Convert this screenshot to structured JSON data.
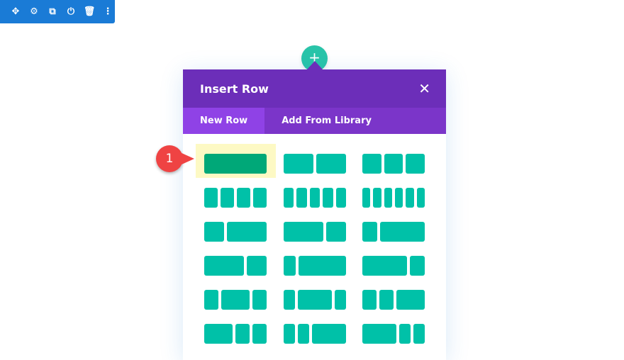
{
  "toolbar": {
    "icons": [
      "move-icon",
      "gear-icon",
      "duplicate-icon",
      "power-icon",
      "trash-icon",
      "more-icon"
    ],
    "glyphs": [
      "✥",
      "⚙",
      "⧉",
      "⏻",
      "🗑",
      "⋮"
    ],
    "color": "#1a7bd6"
  },
  "add_button": {
    "label": "+",
    "color": "#29c4a9"
  },
  "modal": {
    "title": "Insert Row",
    "close": "✕",
    "tabs": [
      {
        "label": "New Row",
        "active": true
      },
      {
        "label": "Add From Library",
        "active": false
      }
    ],
    "layouts": [
      [
        [
          1
        ],
        [
          1,
          1
        ],
        [
          1,
          1,
          1
        ]
      ],
      [
        [
          1,
          1,
          1,
          1
        ],
        [
          1,
          1,
          1,
          1,
          1
        ],
        [
          1,
          1,
          1,
          1,
          1,
          1
        ]
      ],
      [
        [
          1,
          2
        ],
        [
          2,
          1
        ],
        [
          1,
          3
        ]
      ],
      [
        [
          2,
          1
        ],
        [
          1,
          4
        ],
        [
          3,
          1
        ]
      ],
      [
        [
          1,
          2,
          1
        ],
        [
          1,
          3,
          1
        ],
        [
          1,
          1,
          2
        ]
      ],
      [
        [
          2,
          1,
          1
        ],
        [
          1,
          1,
          3
        ],
        [
          3,
          1,
          1
        ]
      ]
    ],
    "selected_layout": [
      0,
      0
    ]
  },
  "annotation": {
    "label": "1",
    "color": "#ef4343"
  }
}
